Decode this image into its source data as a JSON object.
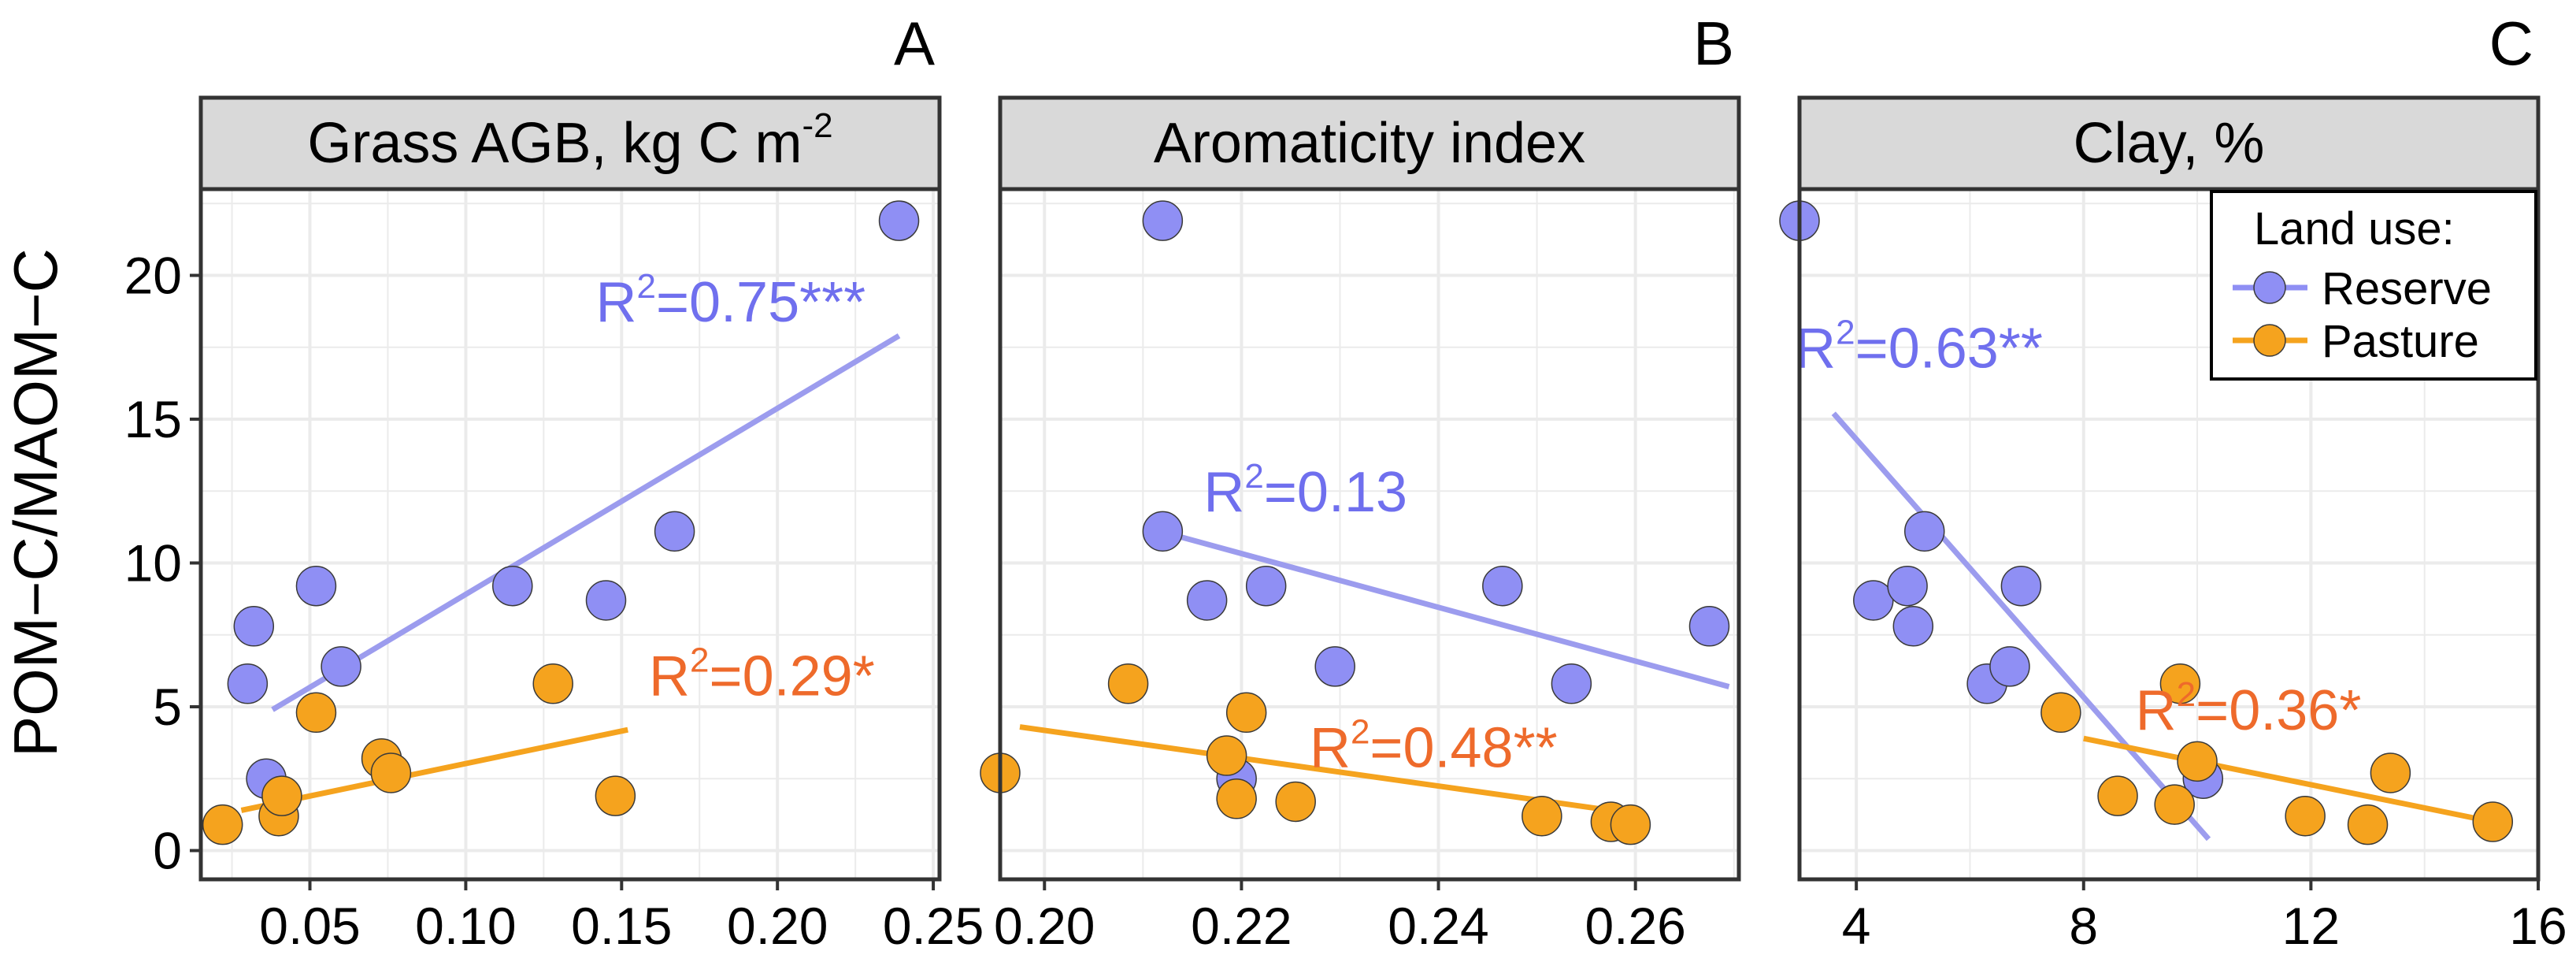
{
  "ylabel": "POM−C/MAOM−C",
  "legend": {
    "title": "Land use:",
    "entries": [
      {
        "name": "Reserve",
        "color": "#8F8FF4"
      },
      {
        "name": "Pasture",
        "color": "#F5A31E"
      }
    ]
  },
  "colors": {
    "reserve_point": "#8F8FF4",
    "reserve_line": "#9C9CEE",
    "reserve_text": "#6F6FEE",
    "pasture_point": "#F5A31E",
    "pasture_line": "#F5A31E",
    "pasture_text": "#EE6A2B",
    "strip": "#D9D9D9",
    "grid": "#EBEBEB"
  },
  "chart_data": [
    {
      "type": "scatter",
      "panel_letter": "A",
      "strip": "Grass AGB, kg C m",
      "strip_sup": "-2",
      "xlim": [
        0.015,
        0.252
      ],
      "ylim": [
        -1,
        23
      ],
      "xticks": [
        0.05,
        0.1,
        0.15,
        0.2,
        0.25
      ],
      "xtick_labels": [
        "0.05",
        "0.10",
        "0.15",
        "0.20",
        "0.25"
      ],
      "yticks": [
        0,
        5,
        10,
        15,
        20
      ],
      "ytick_labels": [
        "0",
        "5",
        "10",
        "15",
        "20"
      ],
      "series": [
        {
          "name": "Reserve",
          "x": [
            0.03,
            0.032,
            0.036,
            0.052,
            0.06,
            0.115,
            0.145,
            0.167,
            0.239
          ],
          "y": [
            5.8,
            7.8,
            2.5,
            9.2,
            6.4,
            9.2,
            8.7,
            11.1,
            21.9
          ],
          "fit": [
            [
              0.038,
              4.9
            ],
            [
              0.239,
              17.9
            ]
          ],
          "r2": "=0.75***",
          "r2_pos": [
            0.185,
            18.4
          ]
        },
        {
          "name": "Pasture",
          "x": [
            0.022,
            0.04,
            0.041,
            0.052,
            0.073,
            0.076,
            0.128,
            0.148
          ],
          "y": [
            0.9,
            1.2,
            1.9,
            4.8,
            3.2,
            2.7,
            5.8,
            1.9
          ],
          "fit": [
            [
              0.028,
              1.4
            ],
            [
              0.152,
              4.2
            ]
          ],
          "r2": "=0.29*",
          "r2_pos": [
            0.195,
            5.4
          ]
        }
      ]
    },
    {
      "type": "scatter",
      "panel_letter": "B",
      "strip": "Aromaticity index",
      "strip_sup": "",
      "xlim": [
        0.1955,
        0.2705
      ],
      "ylim": [
        -1,
        23
      ],
      "xticks": [
        0.2,
        0.22,
        0.24,
        0.26
      ],
      "xtick_labels": [
        "0.20",
        "0.22",
        "0.24",
        "0.26"
      ],
      "yticks": [
        0,
        5,
        10,
        15,
        20
      ],
      "ytick_labels": [
        "0",
        "5",
        "10",
        "15",
        "20"
      ],
      "series": [
        {
          "name": "Reserve",
          "x": [
            0.212,
            0.212,
            0.2165,
            0.2195,
            0.2225,
            0.2295,
            0.2465,
            0.2535,
            0.2675
          ],
          "y": [
            21.9,
            11.1,
            8.7,
            2.5,
            9.2,
            6.4,
            9.2,
            5.8,
            7.8
          ],
          "fit": [
            [
              0.2128,
              11.0
            ],
            [
              0.2695,
              5.7
            ]
          ],
          "r2": "=0.13",
          "r2_pos": [
            0.2265,
            11.8
          ]
        },
        {
          "name": "Pasture",
          "x": [
            0.1955,
            0.2085,
            0.2185,
            0.2205,
            0.2195,
            0.2255,
            0.2505,
            0.2575,
            0.2595
          ],
          "y": [
            2.7,
            5.8,
            3.3,
            4.8,
            1.8,
            1.7,
            1.2,
            1.0,
            0.9
          ],
          "fit": [
            [
              0.1975,
              4.3
            ],
            [
              0.2595,
              1.3
            ]
          ],
          "r2": "=0.48**",
          "r2_pos": [
            0.2395,
            2.9
          ]
        }
      ]
    },
    {
      "type": "scatter",
      "panel_letter": "C",
      "strip": "Clay, %",
      "strip_sup": "",
      "xlim": [
        3.0,
        16.0
      ],
      "ylim": [
        -1,
        23
      ],
      "xticks": [
        4,
        8,
        12,
        16
      ],
      "xtick_labels": [
        "4",
        "8",
        "12",
        "16"
      ],
      "yticks": [
        0,
        5,
        10,
        15,
        20
      ],
      "ytick_labels": [
        "0",
        "5",
        "10",
        "15",
        "20"
      ],
      "series": [
        {
          "name": "Reserve",
          "x": [
            3.0,
            4.3,
            4.9,
            5.0,
            5.2,
            6.3,
            6.7,
            6.9,
            10.1
          ],
          "y": [
            21.9,
            8.7,
            9.2,
            7.8,
            11.1,
            5.8,
            6.4,
            9.2,
            2.5
          ],
          "fit": [
            [
              3.6,
              15.2
            ],
            [
              10.2,
              0.4
            ]
          ],
          "r2": "=0.63**",
          "r2_pos": [
            5.1,
            16.8
          ]
        },
        {
          "name": "Pasture",
          "x": [
            7.6,
            8.6,
            9.6,
            9.7,
            10.0,
            11.9,
            13.0,
            13.4,
            15.2
          ],
          "y": [
            4.8,
            1.9,
            1.6,
            5.8,
            3.1,
            1.2,
            0.9,
            2.7,
            1.0
          ],
          "fit": [
            [
              8.0,
              3.9
            ],
            [
              15.2,
              1.0
            ]
          ],
          "r2": "=0.36*",
          "r2_pos": [
            10.9,
            4.2
          ]
        }
      ]
    }
  ]
}
